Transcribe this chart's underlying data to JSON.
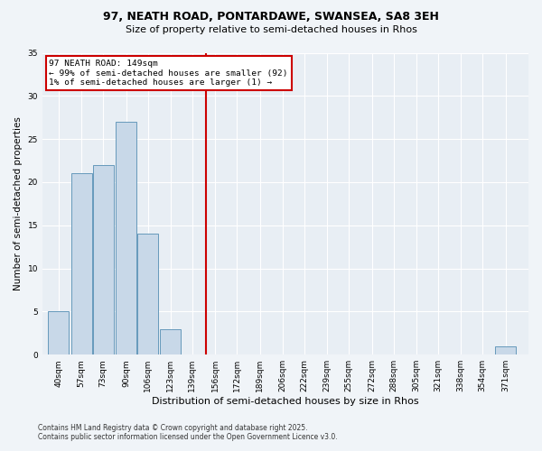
{
  "title1": "97, NEATH ROAD, PONTARDAWE, SWANSEA, SA8 3EH",
  "title2": "Size of property relative to semi-detached houses in Rhos",
  "xlabel": "Distribution of semi-detached houses by size in Rhos",
  "ylabel": "Number of semi-detached properties",
  "bar_color": "#c8d8e8",
  "bar_edge_color": "#6699bb",
  "categories": [
    40,
    57,
    73,
    90,
    106,
    123,
    139,
    156,
    172,
    189,
    206,
    222,
    239,
    255,
    272,
    288,
    305,
    321,
    338,
    354,
    371
  ],
  "values": [
    5,
    21,
    22,
    27,
    14,
    3,
    0,
    0,
    0,
    0,
    0,
    0,
    0,
    0,
    0,
    0,
    0,
    0,
    0,
    0,
    1
  ],
  "bin_width": 16,
  "vline_x": 149,
  "vline_color": "#cc0000",
  "annotation_title": "97 NEATH ROAD: 149sqm",
  "annotation_line1": "← 99% of semi-detached houses are smaller (92)",
  "annotation_line2": "1% of semi-detached houses are larger (1) →",
  "annotation_box_color": "#cc0000",
  "ylim": [
    0,
    35
  ],
  "yticks": [
    0,
    5,
    10,
    15,
    20,
    25,
    30,
    35
  ],
  "background_color": "#e8eef4",
  "grid_color": "#ffffff",
  "footer1": "Contains HM Land Registry data © Crown copyright and database right 2025.",
  "footer2": "Contains public sector information licensed under the Open Government Licence v3.0."
}
